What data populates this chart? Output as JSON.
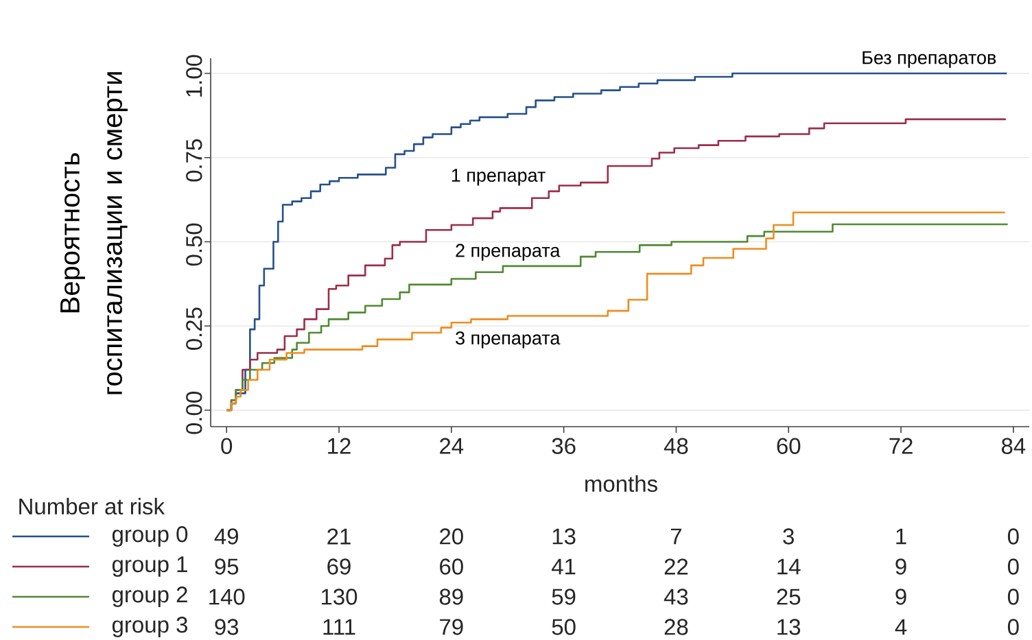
{
  "chart_data": {
    "type": "step",
    "ylabel": "Вероятность госпитализации и смерти",
    "xlabel": "months",
    "xlim": [
      -1.7,
      85.7
    ],
    "ylim": [
      -0.049,
      1.045
    ],
    "xticks": [
      0,
      12,
      24,
      36,
      48,
      60,
      72,
      84
    ],
    "yticks": [
      {
        "value": 0,
        "label": "0.00"
      },
      {
        "value": 0.25,
        "label": "0.25"
      },
      {
        "value": 0.5,
        "label": "0.50"
      },
      {
        "value": 0.75,
        "label": "0.75"
      },
      {
        "value": 1,
        "label": "1.00"
      }
    ],
    "grid": "y",
    "legend": "bottom",
    "series": [
      {
        "name": "group 0",
        "color": "#25508a",
        "x": [
          0,
          0.5,
          1,
          2,
          2.5,
          3,
          3.5,
          4,
          5,
          5.5,
          6,
          7,
          8,
          9,
          10,
          11,
          12,
          14,
          17,
          18,
          19,
          20,
          21,
          22,
          24,
          25,
          26,
          27,
          30,
          32,
          33,
          35,
          37,
          40,
          42,
          44,
          46,
          50,
          54,
          83.3
        ],
        "values": [
          0,
          0.02,
          0.05,
          0.12,
          0.24,
          0.27,
          0.37,
          0.42,
          0.5,
          0.56,
          0.61,
          0.62,
          0.63,
          0.65,
          0.67,
          0.68,
          0.69,
          0.7,
          0.72,
          0.76,
          0.77,
          0.79,
          0.81,
          0.82,
          0.84,
          0.85,
          0.86,
          0.87,
          0.88,
          0.9,
          0.92,
          0.93,
          0.94,
          0.95,
          0.96,
          0.97,
          0.98,
          0.99,
          1.0,
          1.0
        ]
      },
      {
        "name": "group 1",
        "color": "#9b2d4a",
        "x": [
          0,
          0.5,
          1,
          1.7,
          2.5,
          3.3,
          5.4,
          6.2,
          7.5,
          8.3,
          9.6,
          10.9,
          11.7,
          13,
          14.8,
          16.9,
          17.7,
          18.5,
          21.3,
          24,
          26.3,
          28.4,
          29.2,
          32.6,
          34.4,
          35.5,
          37.8,
          40.7,
          45.4,
          46.2,
          47.8,
          50.4,
          52.5,
          55.4,
          59,
          62.2,
          63.8,
          72.5,
          83.2
        ],
        "values": [
          0,
          0.03,
          0.06,
          0.12,
          0.15,
          0.17,
          0.18,
          0.22,
          0.24,
          0.27,
          0.3,
          0.36,
          0.37,
          0.4,
          0.43,
          0.45,
          0.49,
          0.5,
          0.535,
          0.55,
          0.57,
          0.59,
          0.6,
          0.63,
          0.65,
          0.667,
          0.676,
          0.725,
          0.747,
          0.765,
          0.778,
          0.787,
          0.8,
          0.813,
          0.82,
          0.837,
          0.852,
          0.864,
          0.864
        ]
      },
      {
        "name": "group 2",
        "color": "#4f8a32",
        "x": [
          0,
          0.5,
          1,
          1.7,
          2.5,
          3.8,
          5.1,
          7,
          7.5,
          8.8,
          10.1,
          10.9,
          13,
          14.8,
          16.6,
          18.5,
          19.5,
          24,
          26.6,
          29.5,
          37.8,
          39.4,
          44.1,
          47.5,
          55.6,
          57.4,
          64.7,
          83.4
        ],
        "values": [
          0,
          0.03,
          0.06,
          0.09,
          0.12,
          0.14,
          0.155,
          0.18,
          0.2,
          0.23,
          0.25,
          0.27,
          0.29,
          0.31,
          0.33,
          0.35,
          0.373,
          0.39,
          0.41,
          0.428,
          0.456,
          0.47,
          0.49,
          0.5,
          0.517,
          0.53,
          0.552,
          0.552
        ]
      },
      {
        "name": "group 3",
        "color": "#f08c1e",
        "x": [
          0,
          0.5,
          1,
          1.5,
          2.3,
          3.3,
          4.6,
          6.4,
          8.3,
          14.5,
          16.1,
          19.8,
          22.9,
          24,
          26.1,
          30,
          40.7,
          42.9,
          44.9,
          49.6,
          50.9,
          54.1,
          57.6,
          58.4,
          60.5,
          83.1
        ],
        "values": [
          0,
          0.02,
          0.04,
          0.06,
          0.09,
          0.12,
          0.15,
          0.17,
          0.18,
          0.19,
          0.21,
          0.23,
          0.245,
          0.26,
          0.27,
          0.28,
          0.295,
          0.328,
          0.405,
          0.43,
          0.452,
          0.479,
          0.51,
          0.55,
          0.587,
          0.587
        ]
      }
    ],
    "annotations": [
      {
        "text": "Без препаратов",
        "x": 82,
        "y": 1.0
      },
      {
        "text": "1 препарат",
        "x": 29,
        "y": 0.59
      },
      {
        "text": "2 препарата",
        "x": 30,
        "y": 0.428
      },
      {
        "text": "3 препарата",
        "x": 30,
        "y": 0.28
      },
      "Number at risk",
      "49",
      "21",
      "20",
      "13",
      "7",
      "3",
      "1",
      "0",
      "95",
      "69",
      "60",
      "41",
      "22",
      "14",
      "9",
      "0",
      "140",
      "130",
      "89",
      "59",
      "43",
      "25",
      "9",
      "0",
      "93",
      "111",
      "79",
      "50",
      "28",
      "13",
      "4",
      "0"
    ]
  }
}
